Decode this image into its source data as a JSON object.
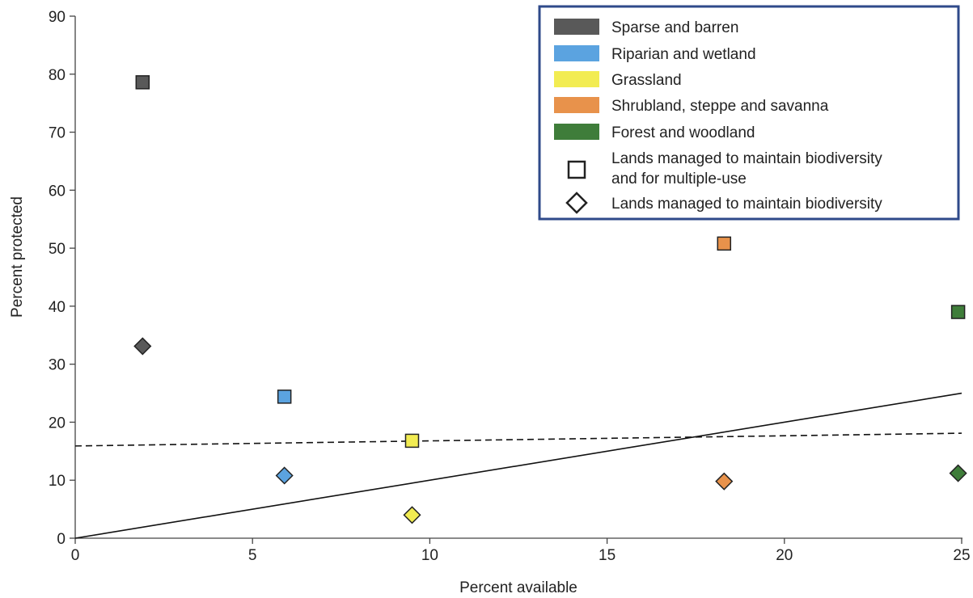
{
  "chart_data": {
    "type": "scatter",
    "xlabel": "Percent available",
    "ylabel": "Percent protected",
    "xlim": [
      0,
      25
    ],
    "ylim": [
      0,
      90
    ],
    "xticks": [
      0,
      5,
      10,
      15,
      20,
      25
    ],
    "yticks": [
      0,
      10,
      20,
      30,
      40,
      50,
      60,
      70,
      80,
      90
    ],
    "grid": false,
    "legend_position": "top-right",
    "categories": [
      {
        "name": "Sparse and barren",
        "color": "#595959"
      },
      {
        "name": "Riparian and wetland",
        "color": "#5ba3e0"
      },
      {
        "name": "Grassland",
        "color": "#f2ec52"
      },
      {
        "name": "Shrubland, steppe and savanna",
        "color": "#e8924b"
      },
      {
        "name": "Forest and woodland",
        "color": "#3f7d3a"
      }
    ],
    "marker_legend": [
      {
        "marker": "square",
        "label": "Lands managed to maintain biodiversity and for multiple-use"
      },
      {
        "marker": "diamond",
        "label": "Lands managed to maintain biodiversity"
      }
    ],
    "series": [
      {
        "marker": "square",
        "points": [
          {
            "category": 0,
            "x": 1.9,
            "y": 78.6
          },
          {
            "category": 1,
            "x": 5.9,
            "y": 24.4
          },
          {
            "category": 2,
            "x": 9.5,
            "y": 16.8
          },
          {
            "category": 3,
            "x": 18.3,
            "y": 50.8
          },
          {
            "category": 4,
            "x": 24.9,
            "y": 39.0
          }
        ]
      },
      {
        "marker": "diamond",
        "points": [
          {
            "category": 0,
            "x": 1.9,
            "y": 33.1
          },
          {
            "category": 1,
            "x": 5.9,
            "y": 10.8
          },
          {
            "category": 2,
            "x": 9.5,
            "y": 4.0
          },
          {
            "category": 3,
            "x": 18.3,
            "y": 9.8
          },
          {
            "category": 4,
            "x": 24.9,
            "y": 11.2
          }
        ]
      }
    ],
    "lines": [
      {
        "style": "solid",
        "x": [
          0,
          25
        ],
        "y": [
          0,
          25
        ]
      },
      {
        "style": "dashed",
        "x": [
          0,
          25
        ],
        "y": [
          15.9,
          18.1
        ]
      }
    ]
  }
}
